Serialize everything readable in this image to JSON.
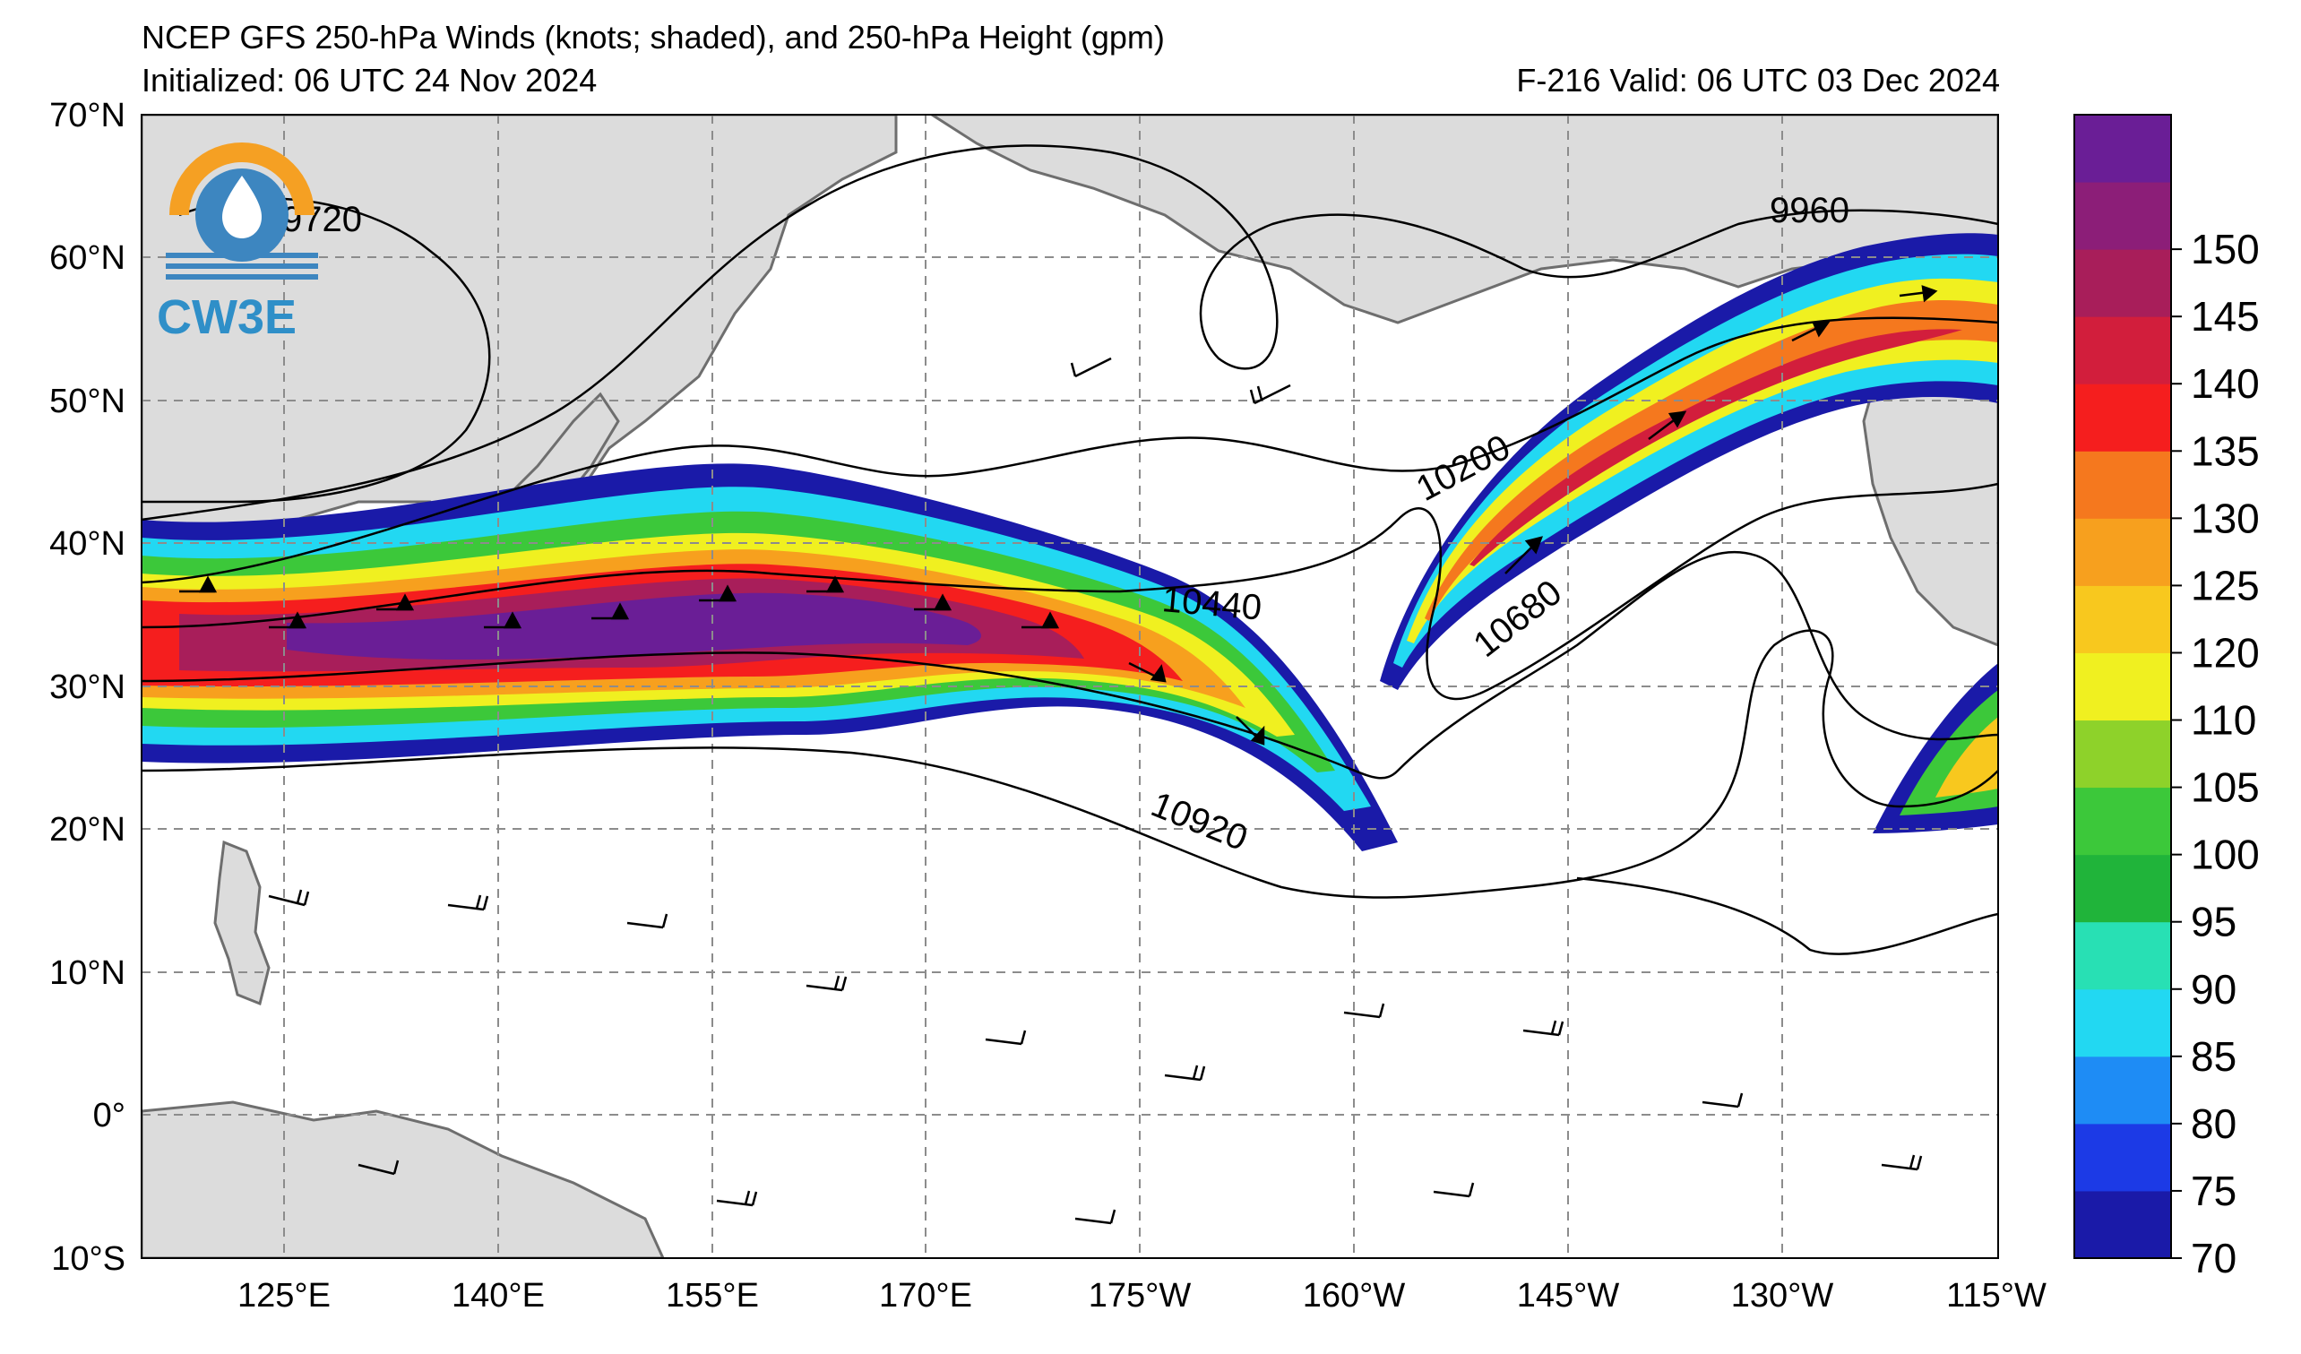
{
  "header": {
    "title": "NCEP GFS 250-hPa Winds (knots; shaded), and 250-hPa Height (gpm)",
    "initialized": "Initialized: 06 UTC 24 Nov 2024",
    "valid": "F-216  Valid: 06 UTC 03 Dec 2024"
  },
  "logo": {
    "text": "CW3E"
  },
  "map": {
    "lat_labels": [
      "70°N",
      "60°N",
      "50°N",
      "40°N",
      "30°N",
      "20°N",
      "10°N",
      "0°",
      "10°S"
    ],
    "lon_labels": [
      "125°E",
      "140°E",
      "155°E",
      "170°E",
      "175°W",
      "160°W",
      "145°W",
      "130°W",
      "115°W"
    ],
    "contour_labels": [
      "9720",
      "9960",
      "10200",
      "10440",
      "10680",
      "10920"
    ],
    "colors": {
      "land": "#dcdcdc",
      "ocean": "#ffffff",
      "coast": "#6e6e6e",
      "grid": "#8c8c8c"
    }
  },
  "colorbar": {
    "ticks": [
      "70",
      "75",
      "80",
      "85",
      "90",
      "95",
      "100",
      "105",
      "110",
      "120",
      "125",
      "130",
      "135",
      "140",
      "145",
      "150"
    ],
    "colors": [
      "#1a1aa8",
      "#1c3ae6",
      "#1e8cf5",
      "#22d8f2",
      "#28e0b4",
      "#20b43a",
      "#3cc83a",
      "#8ed22a",
      "#f0f020",
      "#f8c81e",
      "#f7a01e",
      "#f5781e",
      "#f51e1e",
      "#d21e3c",
      "#a81e5a",
      "#8c1e78",
      "#6a1e96"
    ]
  }
}
